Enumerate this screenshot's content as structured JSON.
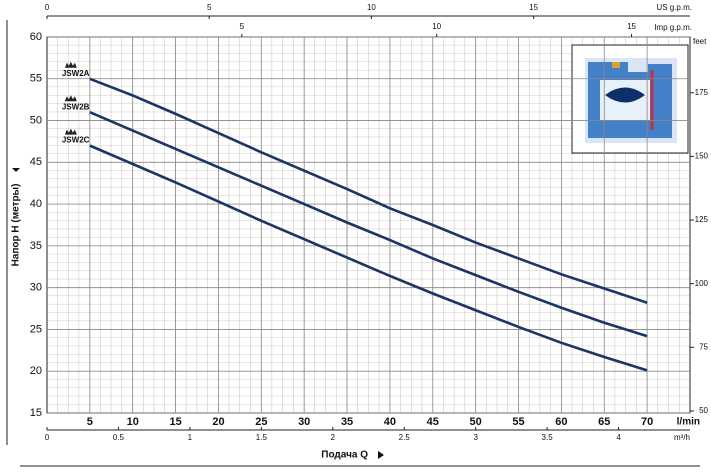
{
  "chart_data": {
    "type": "line",
    "x": [
      5,
      10,
      15,
      20,
      25,
      30,
      35,
      40,
      45,
      50,
      55,
      60,
      65,
      70
    ],
    "series": [
      {
        "name": "JSW2A",
        "color": "#1b3564",
        "values": [
          55,
          53,
          50.8,
          48.5,
          46.2,
          44,
          41.8,
          39.5,
          37.5,
          35.4,
          33.5,
          31.6,
          29.9,
          28.2
        ]
      },
      {
        "name": "JSW2B",
        "color": "#1b3564",
        "values": [
          51,
          48.8,
          46.6,
          44.4,
          42.2,
          40,
          37.8,
          35.7,
          33.5,
          31.5,
          29.5,
          27.6,
          25.8,
          24.2
        ]
      },
      {
        "name": "JSW2C",
        "color": "#1b3564",
        "values": [
          47,
          44.8,
          42.6,
          40.3,
          38,
          35.8,
          33.6,
          31.4,
          29.3,
          27.3,
          25.3,
          23.4,
          21.7,
          20.1
        ]
      }
    ],
    "xlabel": "Подача Q",
    "ylabel": "Напор H (метры)",
    "x_unit": "l/min",
    "xlim": [
      0,
      75
    ],
    "xticks": [
      5,
      10,
      15,
      20,
      25,
      30,
      35,
      40,
      45,
      50,
      55,
      60,
      65,
      70
    ],
    "ylim": [
      15,
      60
    ],
    "yticks": [
      15,
      20,
      25,
      30,
      35,
      40,
      45,
      50,
      55,
      60
    ],
    "y2label": "feet",
    "y2lim": [
      49.2,
      196.9
    ],
    "y2ticks": [
      50,
      75,
      100,
      125,
      150,
      175
    ],
    "top_axes": [
      {
        "label": "US g.p.m.",
        "lim": [
          0,
          19.82
        ],
        "ticks": [
          0,
          5,
          10,
          15
        ]
      },
      {
        "label": "Imp g.p.m.",
        "lim": [
          0,
          16.5
        ],
        "ticks": [
          5,
          10,
          15
        ]
      }
    ],
    "bottom_axis": {
      "label": "m³/h",
      "lim": [
        0,
        4.5
      ],
      "ticks": [
        0,
        0.5,
        1,
        1.5,
        2,
        2.5,
        3,
        3.5,
        4
      ]
    },
    "grid": true
  }
}
